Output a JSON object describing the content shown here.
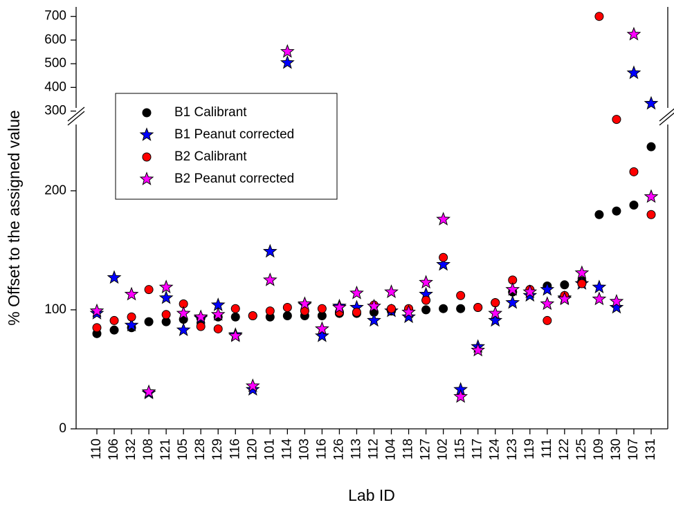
{
  "chart_data": {
    "type": "scatter",
    "x_label": "Lab ID",
    "y_label": "% Offset to the assigned value",
    "categories": [
      "110",
      "106",
      "132",
      "108",
      "121",
      "105",
      "128",
      "129",
      "116",
      "120",
      "101",
      "114",
      "103",
      "116",
      "126",
      "113",
      "112",
      "104",
      "118",
      "127",
      "102",
      "115",
      "117",
      "124",
      "123",
      "119",
      "111",
      "122",
      "125",
      "109",
      "130",
      "107",
      "131"
    ],
    "ylim": [
      0,
      265
    ],
    "yticks": [
      0,
      100,
      200
    ],
    "ylim_upper": [
      290,
      740
    ],
    "yticks_upper": [
      300,
      400,
      500,
      600,
      700
    ],
    "axis_break": true,
    "legend_position": "upper-left",
    "series": [
      {
        "name": "B1 Calibrant",
        "color": "#000000",
        "marker": "circle",
        "values": [
          80,
          83,
          85,
          90,
          90,
          92,
          93,
          94,
          94,
          95,
          94,
          95,
          95,
          95,
          97,
          97,
          98,
          99,
          100,
          100,
          101,
          101,
          102,
          106,
          115,
          117,
          120,
          121,
          124,
          180,
          183,
          188,
          237
        ]
      },
      {
        "name": "B1 Peanut corrected",
        "color": "#0000ff",
        "marker": "star",
        "values": [
          97,
          127,
          87,
          30,
          110,
          83,
          93,
          104,
          79,
          33,
          149,
          504,
          104,
          78,
          103,
          102,
          91,
          99,
          94,
          113,
          138,
          33,
          69,
          91,
          106,
          112,
          117,
          110,
          122,
          119,
          102,
          461,
          332
        ]
      },
      {
        "name": "B2 Calibrant",
        "color": "#ff0000",
        "marker": "circle",
        "values": [
          85,
          91,
          94,
          117,
          96,
          105,
          86,
          84,
          101,
          95,
          99,
          102,
          99,
          101,
          98,
          98,
          104,
          101,
          101,
          108,
          144,
          112,
          102,
          106,
          125,
          117,
          91,
          112,
          122,
          700,
          260,
          216,
          180
        ]
      },
      {
        "name": "B2 Peanut corrected",
        "color": "#ff00ff",
        "marker": "star",
        "values": [
          99,
          null,
          113,
          31,
          119,
          97,
          94,
          96,
          78,
          36,
          125,
          551,
          105,
          84,
          102,
          114,
          103,
          115,
          98,
          123,
          176,
          27,
          66,
          97,
          117,
          115,
          105,
          109,
          131,
          109,
          107,
          624,
          195
        ]
      }
    ]
  }
}
